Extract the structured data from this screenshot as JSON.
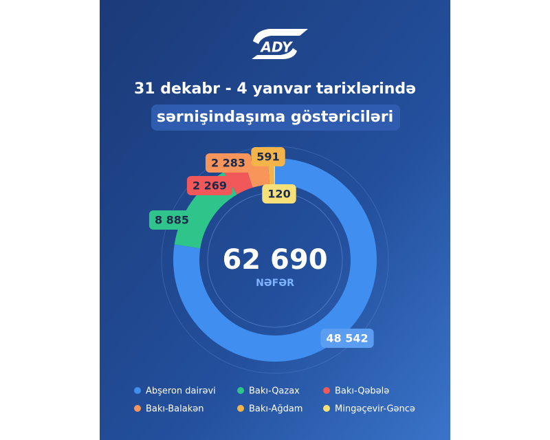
{
  "chart_data": {
    "type": "donut",
    "logo": "ADY",
    "title": "31 dekabr - 4 yanvar tarixlərində",
    "subtitle": "sərnişindaşıma göstəriciləri",
    "total": {
      "value": 62690,
      "label": "62 690"
    },
    "unit": "NƏFƏR",
    "series": [
      {
        "name": "Abşeron dairəvi",
        "color": "#3f8ef0",
        "values": [
          48542
        ],
        "value_labels": [
          "48 542"
        ]
      },
      {
        "name": "Bakı-Qazax",
        "color": "#2ec48a",
        "values": [
          8885
        ],
        "value_labels": [
          "8 885"
        ]
      },
      {
        "name": "Bakı-Qəbələ",
        "color": "#f0585a",
        "values": [
          2269
        ],
        "value_labels": [
          "2 269"
        ]
      },
      {
        "name": "Bakı-Balakən",
        "color": "#f7955a",
        "values": [
          2283
        ],
        "value_labels": [
          "2 283"
        ]
      },
      {
        "name": "Bakı-Ağdam",
        "color": "#f5b44a",
        "values": [
          591
        ],
        "value_labels": [
          "591"
        ]
      },
      {
        "name": "Mingəçevir-Gəncə",
        "color": "#f5e07a",
        "values": [
          120
        ],
        "value_labels": [
          "120"
        ]
      }
    ]
  }
}
